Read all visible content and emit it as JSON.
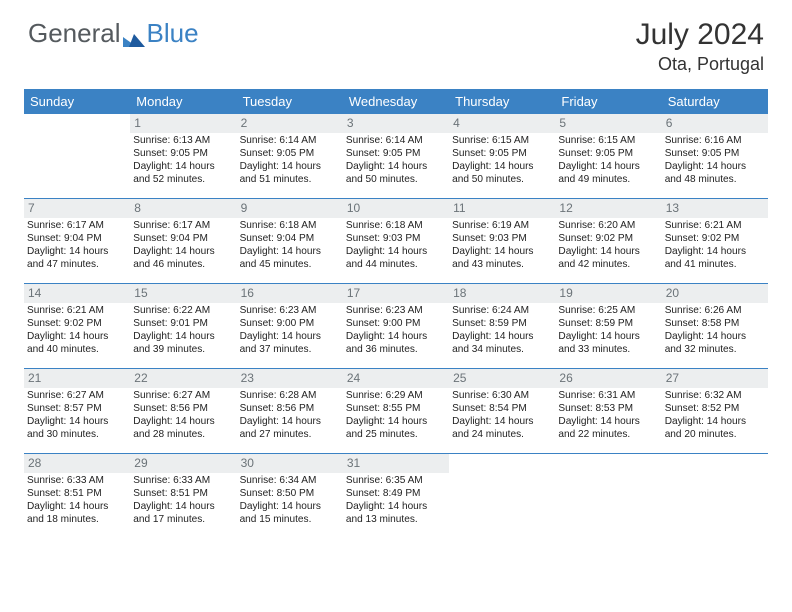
{
  "logo": {
    "text1": "General",
    "text2": "Blue"
  },
  "title": "July 2024",
  "location": "Ota, Portugal",
  "weekdays": [
    "Sunday",
    "Monday",
    "Tuesday",
    "Wednesday",
    "Thursday",
    "Friday",
    "Saturday"
  ],
  "colors": {
    "header_bg": "#3b82c4",
    "header_text": "#ffffff",
    "daynum_bg": "#eceeef",
    "daynum_text": "#6b7378",
    "body_text": "#222222",
    "logo_gray": "#555a5e",
    "logo_blue": "#3b82c4"
  },
  "fonts": {
    "title_size": 30,
    "location_size": 18,
    "weekday_size": 13,
    "daynum_size": 12,
    "cell_size": 10.1
  },
  "grid": {
    "start_weekday": 1,
    "days_in_month": 31,
    "rows": 5,
    "cols": 7
  },
  "days": [
    {
      "n": 1,
      "sunrise": "6:13 AM",
      "sunset": "9:05 PM",
      "daylight": "14 hours and 52 minutes."
    },
    {
      "n": 2,
      "sunrise": "6:14 AM",
      "sunset": "9:05 PM",
      "daylight": "14 hours and 51 minutes."
    },
    {
      "n": 3,
      "sunrise": "6:14 AM",
      "sunset": "9:05 PM",
      "daylight": "14 hours and 50 minutes."
    },
    {
      "n": 4,
      "sunrise": "6:15 AM",
      "sunset": "9:05 PM",
      "daylight": "14 hours and 50 minutes."
    },
    {
      "n": 5,
      "sunrise": "6:15 AM",
      "sunset": "9:05 PM",
      "daylight": "14 hours and 49 minutes."
    },
    {
      "n": 6,
      "sunrise": "6:16 AM",
      "sunset": "9:05 PM",
      "daylight": "14 hours and 48 minutes."
    },
    {
      "n": 7,
      "sunrise": "6:17 AM",
      "sunset": "9:04 PM",
      "daylight": "14 hours and 47 minutes."
    },
    {
      "n": 8,
      "sunrise": "6:17 AM",
      "sunset": "9:04 PM",
      "daylight": "14 hours and 46 minutes."
    },
    {
      "n": 9,
      "sunrise": "6:18 AM",
      "sunset": "9:04 PM",
      "daylight": "14 hours and 45 minutes."
    },
    {
      "n": 10,
      "sunrise": "6:18 AM",
      "sunset": "9:03 PM",
      "daylight": "14 hours and 44 minutes."
    },
    {
      "n": 11,
      "sunrise": "6:19 AM",
      "sunset": "9:03 PM",
      "daylight": "14 hours and 43 minutes."
    },
    {
      "n": 12,
      "sunrise": "6:20 AM",
      "sunset": "9:02 PM",
      "daylight": "14 hours and 42 minutes."
    },
    {
      "n": 13,
      "sunrise": "6:21 AM",
      "sunset": "9:02 PM",
      "daylight": "14 hours and 41 minutes."
    },
    {
      "n": 14,
      "sunrise": "6:21 AM",
      "sunset": "9:02 PM",
      "daylight": "14 hours and 40 minutes."
    },
    {
      "n": 15,
      "sunrise": "6:22 AM",
      "sunset": "9:01 PM",
      "daylight": "14 hours and 39 minutes."
    },
    {
      "n": 16,
      "sunrise": "6:23 AM",
      "sunset": "9:00 PM",
      "daylight": "14 hours and 37 minutes."
    },
    {
      "n": 17,
      "sunrise": "6:23 AM",
      "sunset": "9:00 PM",
      "daylight": "14 hours and 36 minutes."
    },
    {
      "n": 18,
      "sunrise": "6:24 AM",
      "sunset": "8:59 PM",
      "daylight": "14 hours and 34 minutes."
    },
    {
      "n": 19,
      "sunrise": "6:25 AM",
      "sunset": "8:59 PM",
      "daylight": "14 hours and 33 minutes."
    },
    {
      "n": 20,
      "sunrise": "6:26 AM",
      "sunset": "8:58 PM",
      "daylight": "14 hours and 32 minutes."
    },
    {
      "n": 21,
      "sunrise": "6:27 AM",
      "sunset": "8:57 PM",
      "daylight": "14 hours and 30 minutes."
    },
    {
      "n": 22,
      "sunrise": "6:27 AM",
      "sunset": "8:56 PM",
      "daylight": "14 hours and 28 minutes."
    },
    {
      "n": 23,
      "sunrise": "6:28 AM",
      "sunset": "8:56 PM",
      "daylight": "14 hours and 27 minutes."
    },
    {
      "n": 24,
      "sunrise": "6:29 AM",
      "sunset": "8:55 PM",
      "daylight": "14 hours and 25 minutes."
    },
    {
      "n": 25,
      "sunrise": "6:30 AM",
      "sunset": "8:54 PM",
      "daylight": "14 hours and 24 minutes."
    },
    {
      "n": 26,
      "sunrise": "6:31 AM",
      "sunset": "8:53 PM",
      "daylight": "14 hours and 22 minutes."
    },
    {
      "n": 27,
      "sunrise": "6:32 AM",
      "sunset": "8:52 PM",
      "daylight": "14 hours and 20 minutes."
    },
    {
      "n": 28,
      "sunrise": "6:33 AM",
      "sunset": "8:51 PM",
      "daylight": "14 hours and 18 minutes."
    },
    {
      "n": 29,
      "sunrise": "6:33 AM",
      "sunset": "8:51 PM",
      "daylight": "14 hours and 17 minutes."
    },
    {
      "n": 30,
      "sunrise": "6:34 AM",
      "sunset": "8:50 PM",
      "daylight": "14 hours and 15 minutes."
    },
    {
      "n": 31,
      "sunrise": "6:35 AM",
      "sunset": "8:49 PM",
      "daylight": "14 hours and 13 minutes."
    }
  ],
  "labels": {
    "sunrise": "Sunrise:",
    "sunset": "Sunset:",
    "daylight": "Daylight:"
  }
}
